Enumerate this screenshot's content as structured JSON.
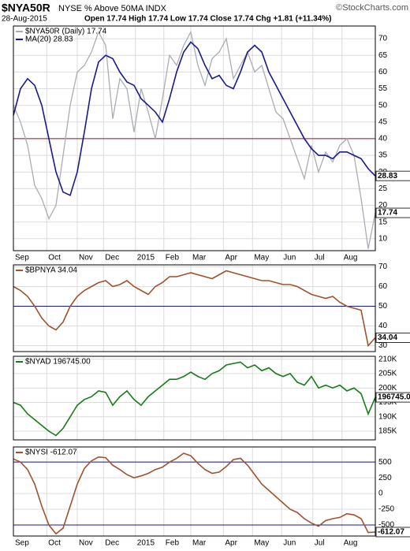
{
  "chart_data": [
    {
      "type": "line",
      "title": "$NYA50R",
      "subtitle": "NYSE % Above 50MA INDX",
      "source": "©StockCharts.com",
      "date": "28-Aug-2015",
      "quote": "Open 17.74 High 17.74 Low 17.74 Close 17.74 Chg +1.81 (+11.34%)",
      "xlim": [
        0,
        51
      ],
      "xticks": [
        {
          "value": 0,
          "label": "Sep"
        },
        {
          "value": 4.7,
          "label": "Oct"
        },
        {
          "value": 9,
          "label": "Nov"
        },
        {
          "value": 12.7,
          "label": "Dec"
        },
        {
          "value": 17.2,
          "label": "2015"
        },
        {
          "value": 21.2,
          "label": "Feb"
        },
        {
          "value": 25,
          "label": "Mar"
        },
        {
          "value": 29.6,
          "label": "Apr"
        },
        {
          "value": 33.7,
          "label": "May"
        },
        {
          "value": 37.8,
          "label": "Jun"
        },
        {
          "value": 42.2,
          "label": "Jul"
        },
        {
          "value": 46.3,
          "label": "Aug"
        }
      ],
      "ylim": [
        6.4,
        73.8
      ],
      "yticks": [
        10,
        15,
        20,
        25,
        30,
        35,
        40,
        45,
        50,
        55,
        60,
        65,
        70
      ],
      "hlines": [
        40
      ],
      "hline_color": "#8b1a3a",
      "grid": true,
      "series": [
        {
          "name": "$NYA50R (Daily) 17.74",
          "color": "#a9adb5",
          "values": [
            50,
            45,
            38,
            26,
            22,
            16,
            20,
            35,
            50,
            60,
            62,
            66,
            72,
            68,
            46,
            58,
            55,
            42,
            55,
            48,
            40,
            52,
            65,
            62,
            68,
            72,
            62,
            56,
            64,
            66,
            70,
            58,
            62,
            66,
            60,
            62,
            55,
            48,
            46,
            40,
            34,
            28,
            38,
            30,
            36,
            33,
            38,
            40,
            35,
            22,
            7,
            17.74
          ]
        },
        {
          "name": "MA(20) 28.83",
          "color": "#1a1a8c",
          "values": [
            47,
            55,
            58,
            56,
            50,
            40,
            30,
            24,
            23,
            30,
            42,
            55,
            63,
            65,
            64,
            60,
            57,
            56,
            52,
            50,
            48,
            45,
            52,
            60,
            66,
            69,
            67,
            62,
            58,
            59,
            56,
            55,
            60,
            66,
            68,
            66,
            60,
            56,
            52,
            48,
            44,
            40,
            37,
            35,
            35,
            34,
            36,
            36,
            35,
            34,
            31,
            28.83
          ]
        }
      ]
    },
    {
      "type": "line",
      "xlim": [
        0,
        51
      ],
      "ylim": [
        27,
        71
      ],
      "yticks": [
        30,
        40,
        50,
        60,
        70
      ],
      "hlines": [
        50
      ],
      "hline_color": "#1a1a8c",
      "grid": true,
      "series": [
        {
          "name": "$BPNYA 34.04",
          "color": "#a0522d",
          "values": [
            60,
            58,
            55,
            50,
            44,
            40,
            38,
            42,
            50,
            55,
            58,
            60,
            62,
            63,
            60,
            61,
            63,
            60,
            58,
            56,
            60,
            62,
            65,
            65,
            66,
            67,
            66,
            65,
            64,
            66,
            68,
            67,
            66,
            65,
            64,
            63,
            63,
            62,
            61,
            61,
            60,
            58,
            56,
            55,
            54,
            55,
            52,
            50,
            49,
            48,
            30,
            34.04
          ]
        }
      ]
    },
    {
      "type": "line",
      "xlim": [
        0,
        51
      ],
      "ylim": [
        182000,
        211000
      ],
      "yticks": [
        {
          "value": 185000,
          "label": "185K"
        },
        {
          "value": 190000,
          "label": "190K"
        },
        {
          "value": 195000,
          "label": "195K"
        },
        {
          "value": 200000,
          "label": "200K"
        },
        {
          "value": 205000,
          "label": "205K"
        },
        {
          "value": 210000,
          "label": "210K"
        }
      ],
      "grid": true,
      "series": [
        {
          "name": "$NYAD 196745.00",
          "color": "#1a7a1a",
          "values": [
            195000,
            194000,
            191000,
            189000,
            187000,
            185000,
            183500,
            186000,
            190000,
            194000,
            196000,
            197000,
            199000,
            198500,
            194000,
            197000,
            199000,
            196000,
            194000,
            197000,
            199000,
            201000,
            203000,
            203000,
            204000,
            205500,
            204000,
            203000,
            205000,
            206000,
            208000,
            208500,
            209000,
            207000,
            208000,
            206000,
            207000,
            205000,
            204000,
            205000,
            202000,
            201000,
            204000,
            200000,
            201000,
            200000,
            201000,
            199000,
            200000,
            198000,
            191000,
            196745
          ],
          "value_labels": [
            null,
            null,
            null,
            null,
            null,
            null,
            null,
            null,
            null,
            null,
            null,
            null,
            null,
            null,
            null,
            null,
            null,
            null,
            null,
            null,
            null,
            null,
            null,
            null,
            null,
            null,
            null,
            null,
            null,
            null,
            null,
            null,
            null,
            null,
            null,
            null,
            null,
            null,
            null,
            null,
            null,
            null,
            null,
            null,
            null,
            null,
            null,
            null,
            null,
            null,
            null,
            "196745.00"
          ]
        }
      ]
    },
    {
      "type": "line",
      "xlim": [
        0,
        51
      ],
      "xticks": [
        {
          "value": 0,
          "label": "Sep"
        },
        {
          "value": 4.7,
          "label": "Oct"
        },
        {
          "value": 9,
          "label": "Nov"
        },
        {
          "value": 12.7,
          "label": "Dec"
        },
        {
          "value": 17.2,
          "label": "2015"
        },
        {
          "value": 21.2,
          "label": "Feb"
        },
        {
          "value": 25,
          "label": "Mar"
        },
        {
          "value": 29.6,
          "label": "Apr"
        },
        {
          "value": 33.7,
          "label": "May"
        },
        {
          "value": 37.8,
          "label": "Jun"
        },
        {
          "value": 42.2,
          "label": "Jul"
        },
        {
          "value": 46.3,
          "label": "Aug"
        }
      ],
      "ylim": [
        -675,
        740
      ],
      "yticks": [
        -500,
        -250,
        0,
        250,
        500
      ],
      "hlines": [
        500,
        -500
      ],
      "hline_color": "#1a1a8c",
      "grid": true,
      "series": [
        {
          "name": "$NYSI -612.07",
          "color": "#a0522d",
          "values": [
            550,
            500,
            380,
            150,
            -200,
            -500,
            -640,
            -550,
            -200,
            150,
            400,
            520,
            580,
            570,
            450,
            380,
            300,
            250,
            280,
            320,
            380,
            420,
            500,
            560,
            640,
            600,
            480,
            380,
            320,
            340,
            430,
            540,
            560,
            450,
            300,
            150,
            50,
            -50,
            -150,
            -250,
            -300,
            -400,
            -470,
            -520,
            -430,
            -400,
            -380,
            -320,
            -340,
            -400,
            -620,
            -612.07
          ]
        }
      ]
    }
  ]
}
